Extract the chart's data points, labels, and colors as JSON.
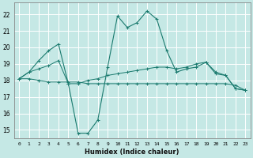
{
  "xlabel": "Humidex (Indice chaleur)",
  "background_color": "#c5e8e5",
  "grid_color": "#ffffff",
  "line_color": "#1a7a6e",
  "xlim": [
    -0.5,
    23.5
  ],
  "ylim": [
    14.5,
    22.7
  ],
  "xticks": [
    0,
    1,
    2,
    3,
    4,
    5,
    6,
    7,
    8,
    9,
    10,
    11,
    12,
    13,
    14,
    15,
    16,
    17,
    18,
    19,
    20,
    21,
    22,
    23
  ],
  "yticks": [
    15,
    16,
    17,
    18,
    19,
    20,
    21,
    22
  ],
  "line_main_x": [
    0,
    1,
    2,
    3,
    4,
    5,
    6,
    7,
    8,
    9,
    10,
    11,
    12,
    13,
    14,
    15,
    16,
    17,
    18,
    19,
    20,
    21,
    22,
    23
  ],
  "line_main_y": [
    18.1,
    18.5,
    19.2,
    19.8,
    20.2,
    17.8,
    14.8,
    14.8,
    15.6,
    18.8,
    21.9,
    21.2,
    21.5,
    22.2,
    21.7,
    19.8,
    18.5,
    18.7,
    18.8,
    19.1,
    18.4,
    18.3,
    17.5,
    17.4
  ],
  "line_mid_x": [
    0,
    1,
    2,
    3,
    4,
    5,
    6,
    7,
    8,
    9,
    10,
    11,
    12,
    13,
    14,
    15,
    16,
    17,
    18,
    19,
    20,
    21,
    22,
    23
  ],
  "line_mid_y": [
    18.1,
    18.5,
    18.7,
    18.9,
    19.2,
    17.8,
    17.8,
    18.0,
    18.1,
    18.3,
    18.4,
    18.5,
    18.6,
    18.7,
    18.8,
    18.8,
    18.7,
    18.8,
    19.0,
    19.1,
    18.5,
    18.3,
    17.5,
    17.4
  ],
  "line_flat_x": [
    0,
    1,
    2,
    3,
    4,
    5,
    6,
    7,
    8,
    9,
    10,
    11,
    12,
    13,
    14,
    15,
    16,
    17,
    18,
    19,
    20,
    21,
    22,
    23
  ],
  "line_flat_y": [
    18.1,
    18.1,
    18.0,
    17.9,
    17.9,
    17.9,
    17.9,
    17.8,
    17.8,
    17.8,
    17.8,
    17.8,
    17.8,
    17.8,
    17.8,
    17.8,
    17.8,
    17.8,
    17.8,
    17.8,
    17.8,
    17.8,
    17.7,
    17.4
  ]
}
